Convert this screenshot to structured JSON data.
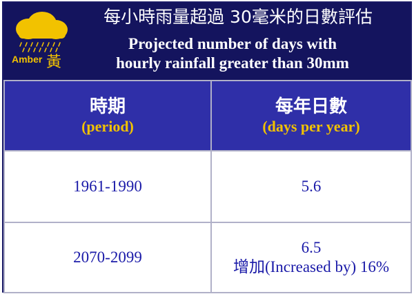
{
  "header": {
    "title_zh": "每小時雨量超過 30毫米的日數評估",
    "title_en_line1": "Projected number of days with",
    "title_en_line2": "hourly rainfall greater than 30mm",
    "logo": {
      "icon": "amber-rainstorm-signal-icon",
      "word": "Amber",
      "char": "黃",
      "color": "#f2c200"
    }
  },
  "table": {
    "columns": [
      {
        "label_zh": "時期",
        "label_en": "(period)"
      },
      {
        "label_zh": "每年日數",
        "label_en": "(days per year)"
      }
    ],
    "rows": [
      {
        "period": "1961-1990",
        "days": "5.6",
        "note": ""
      },
      {
        "period": "2070-2099",
        "days": "6.5",
        "note": "增加(Increased by) 16%"
      }
    ]
  },
  "colors": {
    "header_bg": "#14145e",
    "column_header_bg": "#2f2fa8",
    "accent_yellow": "#f2c200",
    "cell_text": "#1a1aa8"
  }
}
